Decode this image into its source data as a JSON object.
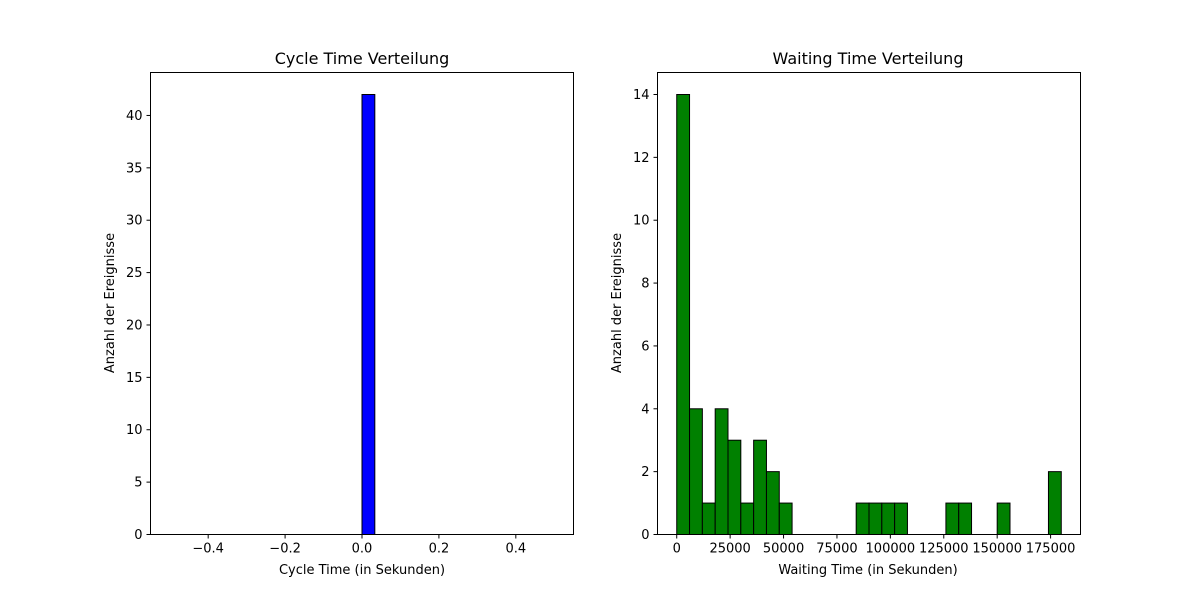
{
  "chart_data": [
    {
      "type": "bar",
      "title": "Cycle Time Verteilung",
      "xlabel": "Cycle Time (in Sekunden)",
      "ylabel": "Anzahl der Ereignisse",
      "xlim": [
        -0.55,
        0.55
      ],
      "ylim": [
        0,
        44.1
      ],
      "xticks": [
        -0.4,
        -0.2,
        0.0,
        0.2,
        0.4
      ],
      "xtick_labels": [
        "−0.4",
        "−0.2",
        "0.0",
        "0.2",
        "0.4"
      ],
      "yticks": [
        0,
        5,
        10,
        15,
        20,
        25,
        30,
        35,
        40
      ],
      "yticks_labels": [
        "0",
        "5",
        "10",
        "15",
        "20",
        "25",
        "30",
        "35",
        "40"
      ],
      "bar_color": "#0000ff",
      "edge_color": "#000000",
      "bins": {
        "start": -0.5,
        "width": 0.0333333
      },
      "counts": [
        0,
        0,
        0,
        0,
        0,
        0,
        0,
        0,
        0,
        0,
        0,
        0,
        0,
        0,
        0,
        42,
        0,
        0,
        0,
        0,
        0,
        0,
        0,
        0,
        0,
        0,
        0,
        0,
        0,
        0
      ],
      "grid": false
    },
    {
      "type": "bar",
      "title": "Waiting Time Verteilung",
      "xlabel": "Waiting Time (in Sekunden)",
      "ylabel": "Anzahl der Ereignisse",
      "xlim": [
        -9000,
        189000
      ],
      "ylim": [
        0,
        14.7
      ],
      "xticks": [
        0,
        25000,
        50000,
        75000,
        100000,
        125000,
        150000,
        175000
      ],
      "xtick_labels": [
        "0",
        "25000",
        "50000",
        "75000",
        "100000",
        "125000",
        "150000",
        "175000"
      ],
      "yticks": [
        0,
        2,
        4,
        6,
        8,
        10,
        12,
        14
      ],
      "yticks_labels": [
        "0",
        "2",
        "4",
        "6",
        "8",
        "10",
        "12",
        "14"
      ],
      "bar_color": "#008000",
      "edge_color": "#000000",
      "bins": {
        "start": 0,
        "width": 6000
      },
      "counts": [
        14,
        4,
        1,
        4,
        3,
        1,
        3,
        2,
        1,
        0,
        0,
        0,
        0,
        0,
        1,
        1,
        1,
        1,
        0,
        0,
        0,
        1,
        1,
        0,
        0,
        1,
        0,
        0,
        0,
        2
      ],
      "grid": false
    }
  ]
}
